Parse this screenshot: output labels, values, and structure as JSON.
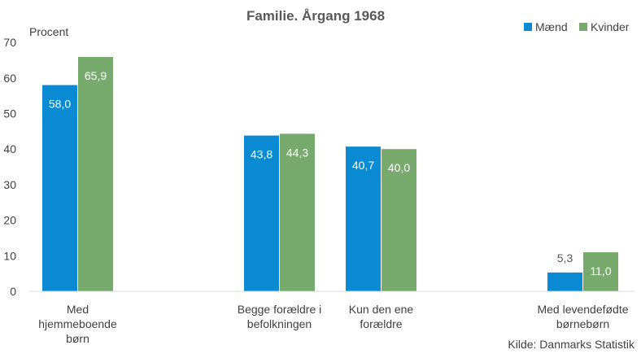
{
  "chart_data": {
    "type": "bar",
    "title": "Familie. Årgang 1968",
    "ylabel": "Procent",
    "xlabel": "",
    "ylim": [
      0,
      70
    ],
    "yticks": [
      0,
      10,
      20,
      30,
      40,
      50,
      60,
      70
    ],
    "grid": false,
    "legend_position": "top-right",
    "categories": [
      [
        "Med",
        "hjemmeboende",
        "børn"
      ],
      [
        "Begge forældre i",
        "befolkningen"
      ],
      [
        "Kun den ene",
        "forældre"
      ],
      [
        "Med levendefødte",
        "børnebørn"
      ]
    ],
    "series": [
      {
        "name": "Mænd",
        "color": "#0a8ad2",
        "values": [
          58.0,
          43.8,
          40.7,
          5.3
        ],
        "labels": [
          "58,0",
          "43,8",
          "40,7",
          "5,3"
        ]
      },
      {
        "name": "Kvinder",
        "color": "#78aa6e",
        "values": [
          65.9,
          44.3,
          40.0,
          11.0
        ],
        "labels": [
          "65,9",
          "44,3",
          "40,0",
          "11,0"
        ]
      }
    ],
    "source": "Kilde: Danmarks Statistik"
  }
}
